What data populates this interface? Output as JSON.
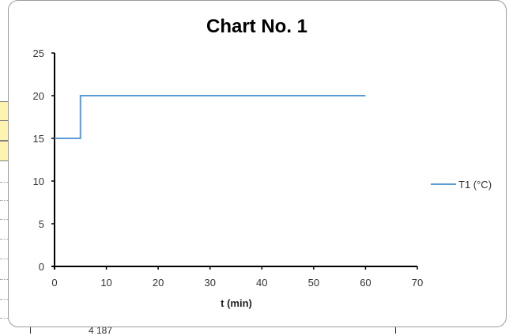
{
  "sheet": {
    "bottom_text": "4 187"
  },
  "chart_data": {
    "type": "line",
    "title": "Chart No. 1",
    "xlabel": "t (min)",
    "ylabel": "",
    "xlim": [
      0,
      70
    ],
    "ylim": [
      0,
      25
    ],
    "x_ticks": [
      0,
      10,
      20,
      30,
      40,
      50,
      60,
      70
    ],
    "y_ticks": [
      0,
      5,
      10,
      15,
      20,
      25
    ],
    "grid": false,
    "legend_position": "right",
    "series": [
      {
        "name": "T1 (°C)",
        "color": "#5b9bd5",
        "x": [
          0,
          5,
          5,
          60
        ],
        "y": [
          15,
          15,
          20,
          20
        ]
      }
    ]
  }
}
